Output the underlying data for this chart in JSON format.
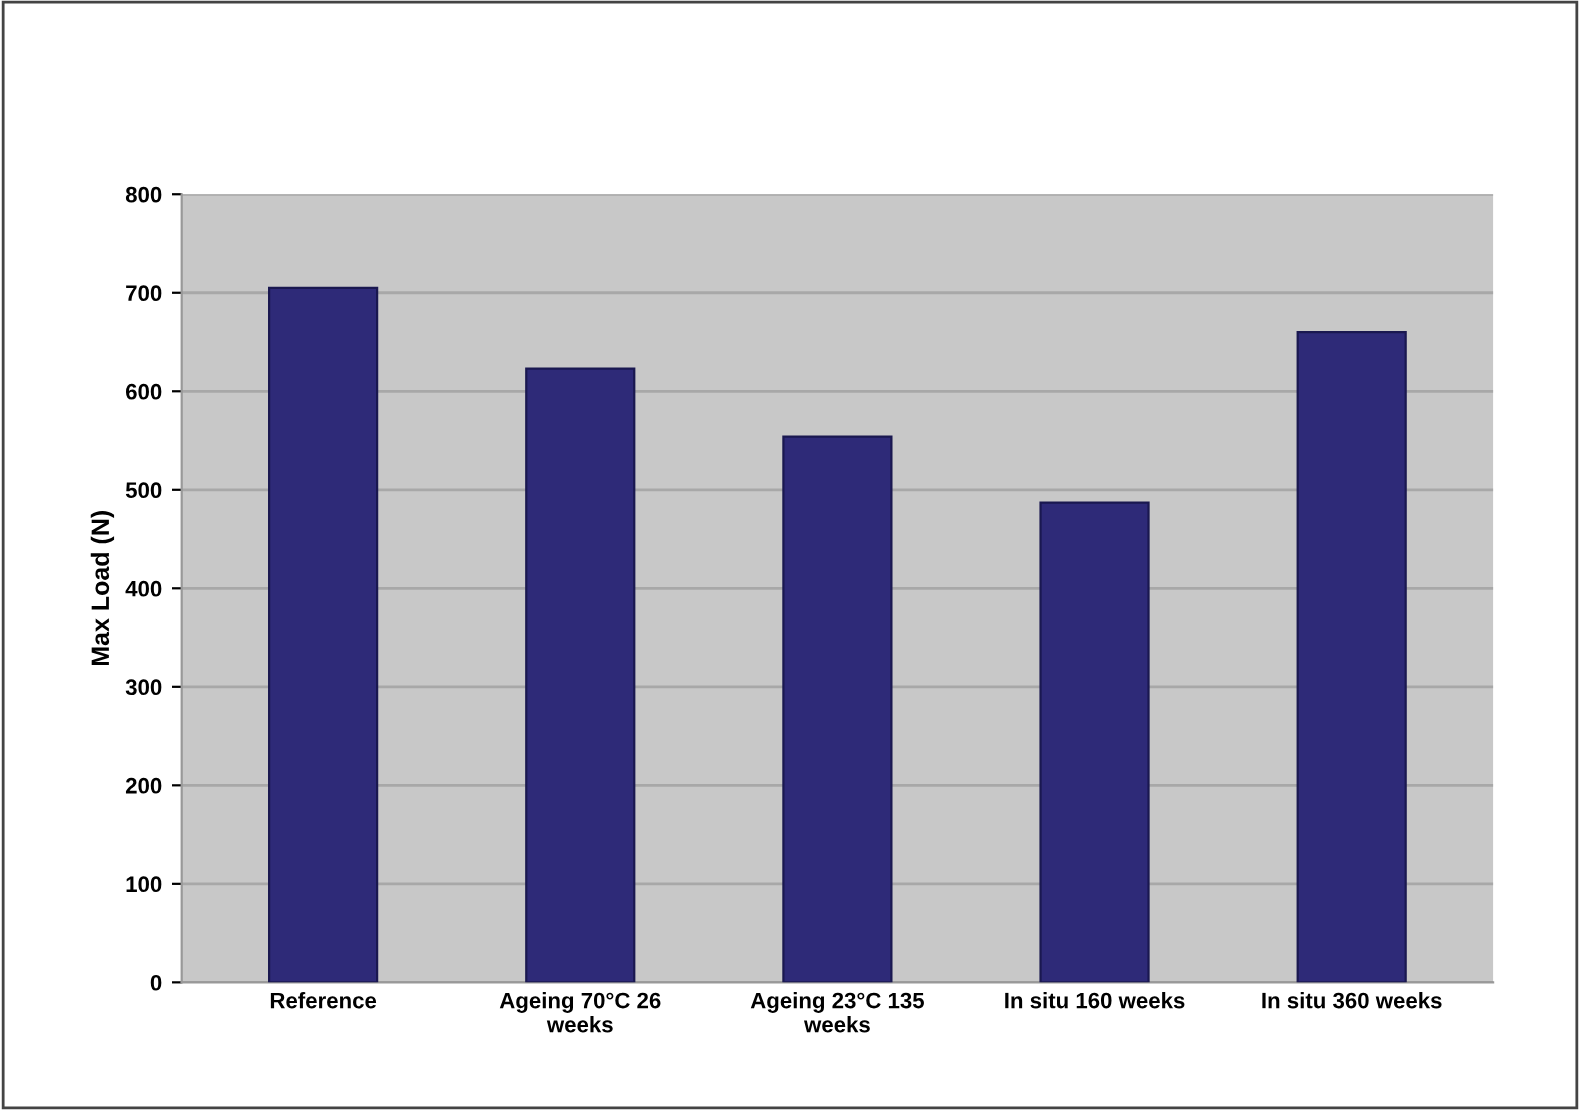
{
  "chart_data": {
    "type": "bar",
    "ylabel": "Max Load (N)",
    "categories": [
      "Reference",
      "Ageing 70°C 26\nweeks",
      "Ageing 23°C 135\nweeks",
      "In situ 160 weeks",
      "In situ 360 weeks"
    ],
    "values": [
      705,
      623,
      554,
      487,
      660
    ],
    "color": "#2e2a78",
    "ylim": [
      0,
      800
    ],
    "yticks": [
      0,
      100,
      200,
      300,
      400,
      500,
      600,
      700,
      800
    ],
    "grid": "y"
  }
}
